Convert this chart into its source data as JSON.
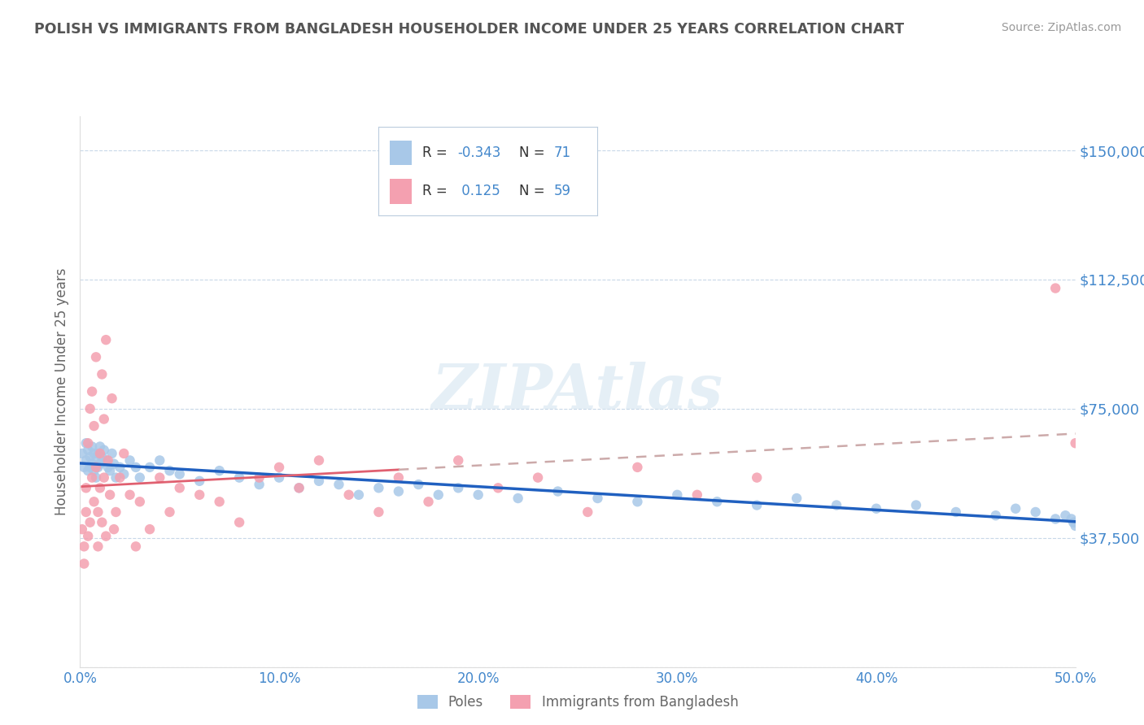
{
  "title": "POLISH VS IMMIGRANTS FROM BANGLADESH HOUSEHOLDER INCOME UNDER 25 YEARS CORRELATION CHART",
  "source": "Source: ZipAtlas.com",
  "ylabel": "Householder Income Under 25 years",
  "xlim": [
    0.0,
    0.5
  ],
  "ylim": [
    0,
    160000
  ],
  "yticks": [
    0,
    37500,
    75000,
    112500,
    150000
  ],
  "ytick_labels": [
    "",
    "$37,500",
    "$75,000",
    "$112,500",
    "$150,000"
  ],
  "xticks": [
    0.0,
    0.1,
    0.2,
    0.3,
    0.4,
    0.5
  ],
  "xtick_labels": [
    "0.0%",
    "10.0%",
    "20.0%",
    "30.0%",
    "40.0%",
    "50.0%"
  ],
  "poles_color": "#a8c8e8",
  "bangladesh_color": "#f4a0b0",
  "poles_line_color": "#2060c0",
  "bangladesh_line_color": "#e06070",
  "poles_R": -0.343,
  "poles_N": 71,
  "bangladesh_R": 0.125,
  "bangladesh_N": 59,
  "watermark": "ZIPAtlas",
  "legend_poles": "Poles",
  "legend_bangladesh": "Immigrants from Bangladesh",
  "background_color": "#ffffff",
  "grid_color": "#c8d8e8",
  "title_color": "#555555",
  "axis_label_color": "#666666",
  "tick_color": "#4488cc",
  "source_color": "#999999",
  "poles_x": [
    0.001,
    0.002,
    0.003,
    0.003,
    0.004,
    0.004,
    0.005,
    0.005,
    0.006,
    0.006,
    0.007,
    0.007,
    0.008,
    0.008,
    0.009,
    0.009,
    0.01,
    0.01,
    0.011,
    0.012,
    0.013,
    0.014,
    0.015,
    0.016,
    0.017,
    0.018,
    0.02,
    0.022,
    0.025,
    0.028,
    0.03,
    0.035,
    0.04,
    0.045,
    0.05,
    0.06,
    0.07,
    0.08,
    0.09,
    0.1,
    0.11,
    0.12,
    0.13,
    0.14,
    0.15,
    0.16,
    0.17,
    0.18,
    0.19,
    0.2,
    0.22,
    0.24,
    0.26,
    0.28,
    0.3,
    0.32,
    0.34,
    0.36,
    0.38,
    0.4,
    0.42,
    0.44,
    0.46,
    0.47,
    0.48,
    0.49,
    0.495,
    0.498,
    0.499,
    0.5,
    0.5
  ],
  "poles_y": [
    62000,
    58000,
    65000,
    60000,
    57000,
    63000,
    61000,
    58000,
    64000,
    59000,
    62000,
    57000,
    60000,
    55000,
    62000,
    58000,
    64000,
    59000,
    61000,
    63000,
    60000,
    58000,
    57000,
    62000,
    59000,
    55000,
    58000,
    56000,
    60000,
    58000,
    55000,
    58000,
    60000,
    57000,
    56000,
    54000,
    57000,
    55000,
    53000,
    55000,
    52000,
    54000,
    53000,
    50000,
    52000,
    51000,
    53000,
    50000,
    52000,
    50000,
    49000,
    51000,
    49000,
    48000,
    50000,
    48000,
    47000,
    49000,
    47000,
    46000,
    47000,
    45000,
    44000,
    46000,
    45000,
    43000,
    44000,
    43000,
    42000,
    42000,
    41000
  ],
  "bangladesh_x": [
    0.001,
    0.002,
    0.002,
    0.003,
    0.003,
    0.004,
    0.004,
    0.005,
    0.005,
    0.006,
    0.006,
    0.007,
    0.007,
    0.008,
    0.008,
    0.009,
    0.009,
    0.01,
    0.01,
    0.011,
    0.011,
    0.012,
    0.012,
    0.013,
    0.013,
    0.014,
    0.015,
    0.016,
    0.017,
    0.018,
    0.02,
    0.022,
    0.025,
    0.028,
    0.03,
    0.035,
    0.04,
    0.045,
    0.05,
    0.06,
    0.07,
    0.08,
    0.09,
    0.1,
    0.11,
    0.12,
    0.135,
    0.15,
    0.16,
    0.175,
    0.19,
    0.21,
    0.23,
    0.255,
    0.28,
    0.31,
    0.34,
    0.49,
    0.5
  ],
  "bangladesh_y": [
    40000,
    35000,
    30000,
    45000,
    52000,
    38000,
    65000,
    42000,
    75000,
    55000,
    80000,
    48000,
    70000,
    58000,
    90000,
    45000,
    35000,
    62000,
    52000,
    85000,
    42000,
    72000,
    55000,
    38000,
    95000,
    60000,
    50000,
    78000,
    40000,
    45000,
    55000,
    62000,
    50000,
    35000,
    48000,
    40000,
    55000,
    45000,
    52000,
    50000,
    48000,
    42000,
    55000,
    58000,
    52000,
    60000,
    50000,
    45000,
    55000,
    48000,
    60000,
    52000,
    55000,
    45000,
    58000,
    50000,
    55000,
    110000,
    65000
  ]
}
